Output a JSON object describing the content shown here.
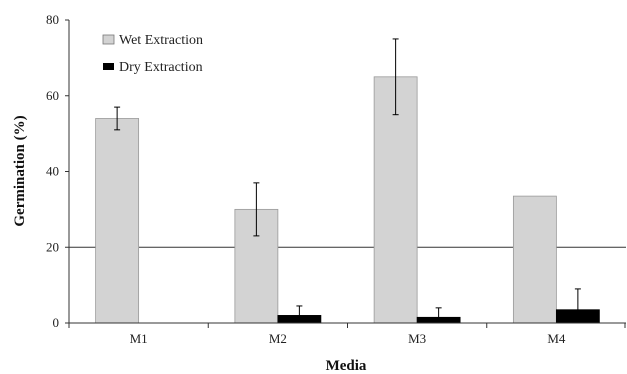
{
  "chart_data": {
    "type": "bar",
    "title": "",
    "xlabel": "Media",
    "ylabel": "Germination (%)",
    "ylim": [
      0,
      80
    ],
    "yticks": [
      0,
      20,
      40,
      60,
      80
    ],
    "grid": "horizontal line at 20",
    "legend_position": "top-left",
    "categories": [
      "M1",
      "M2",
      "M3",
      "M4"
    ],
    "series": [
      {
        "name": "Wet Extraction",
        "color": "#d3d3d3",
        "values": [
          54,
          30,
          65,
          33.5
        ],
        "error": [
          3,
          7,
          10,
          0
        ]
      },
      {
        "name": "Dry Extraction",
        "color": "#000000",
        "values": [
          0,
          2,
          1.5,
          3.5
        ],
        "error": [
          0,
          2.5,
          2.5,
          5.5
        ]
      }
    ]
  }
}
